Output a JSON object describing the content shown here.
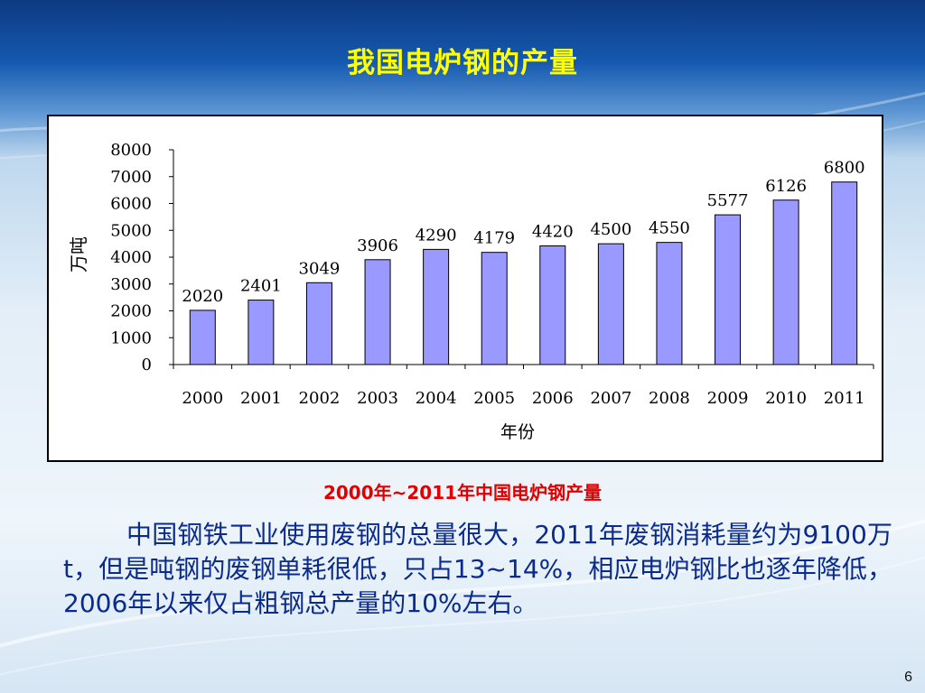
{
  "slide": {
    "title": "我国电炉钢的产量",
    "caption": "2000年~2011年中国电炉钢产量",
    "paragraph": "中国钢铁工业使用废钢的总量很大，2011年废钢消耗量约为9100万t，但是吨钢的废钢单耗很低，只占13~14%，相应电炉钢比也逐年降低，2006年以来仅占粗钢总产量的10%左右。",
    "page_number": "6"
  },
  "colors": {
    "title": "#ffff00",
    "caption": "#e00000",
    "body_text": "#0a2a8c",
    "bar_fill": "#9999ff",
    "bar_stroke": "#000000"
  },
  "chart_data": {
    "type": "bar",
    "categories": [
      "2000",
      "2001",
      "2002",
      "2003",
      "2004",
      "2005",
      "2006",
      "2007",
      "2008",
      "2009",
      "2010",
      "2011"
    ],
    "values": [
      2020,
      2401,
      3049,
      3906,
      4290,
      4179,
      4420,
      4500,
      4550,
      5577,
      6126,
      6800
    ],
    "data_labels": [
      "2020",
      "2401",
      "3049",
      "3906",
      "4290",
      "4179",
      "4420",
      "4500",
      "4550",
      "5577",
      "6126",
      "6800"
    ],
    "y_ticks": [
      "8000",
      "7000",
      "6000",
      "5000",
      "4000",
      "3000",
      "2000",
      "1000",
      "0"
    ],
    "xlabel": "年份",
    "ylabel": "万吨",
    "ylim": [
      0,
      8000
    ],
    "grid": false,
    "legend": "none"
  }
}
